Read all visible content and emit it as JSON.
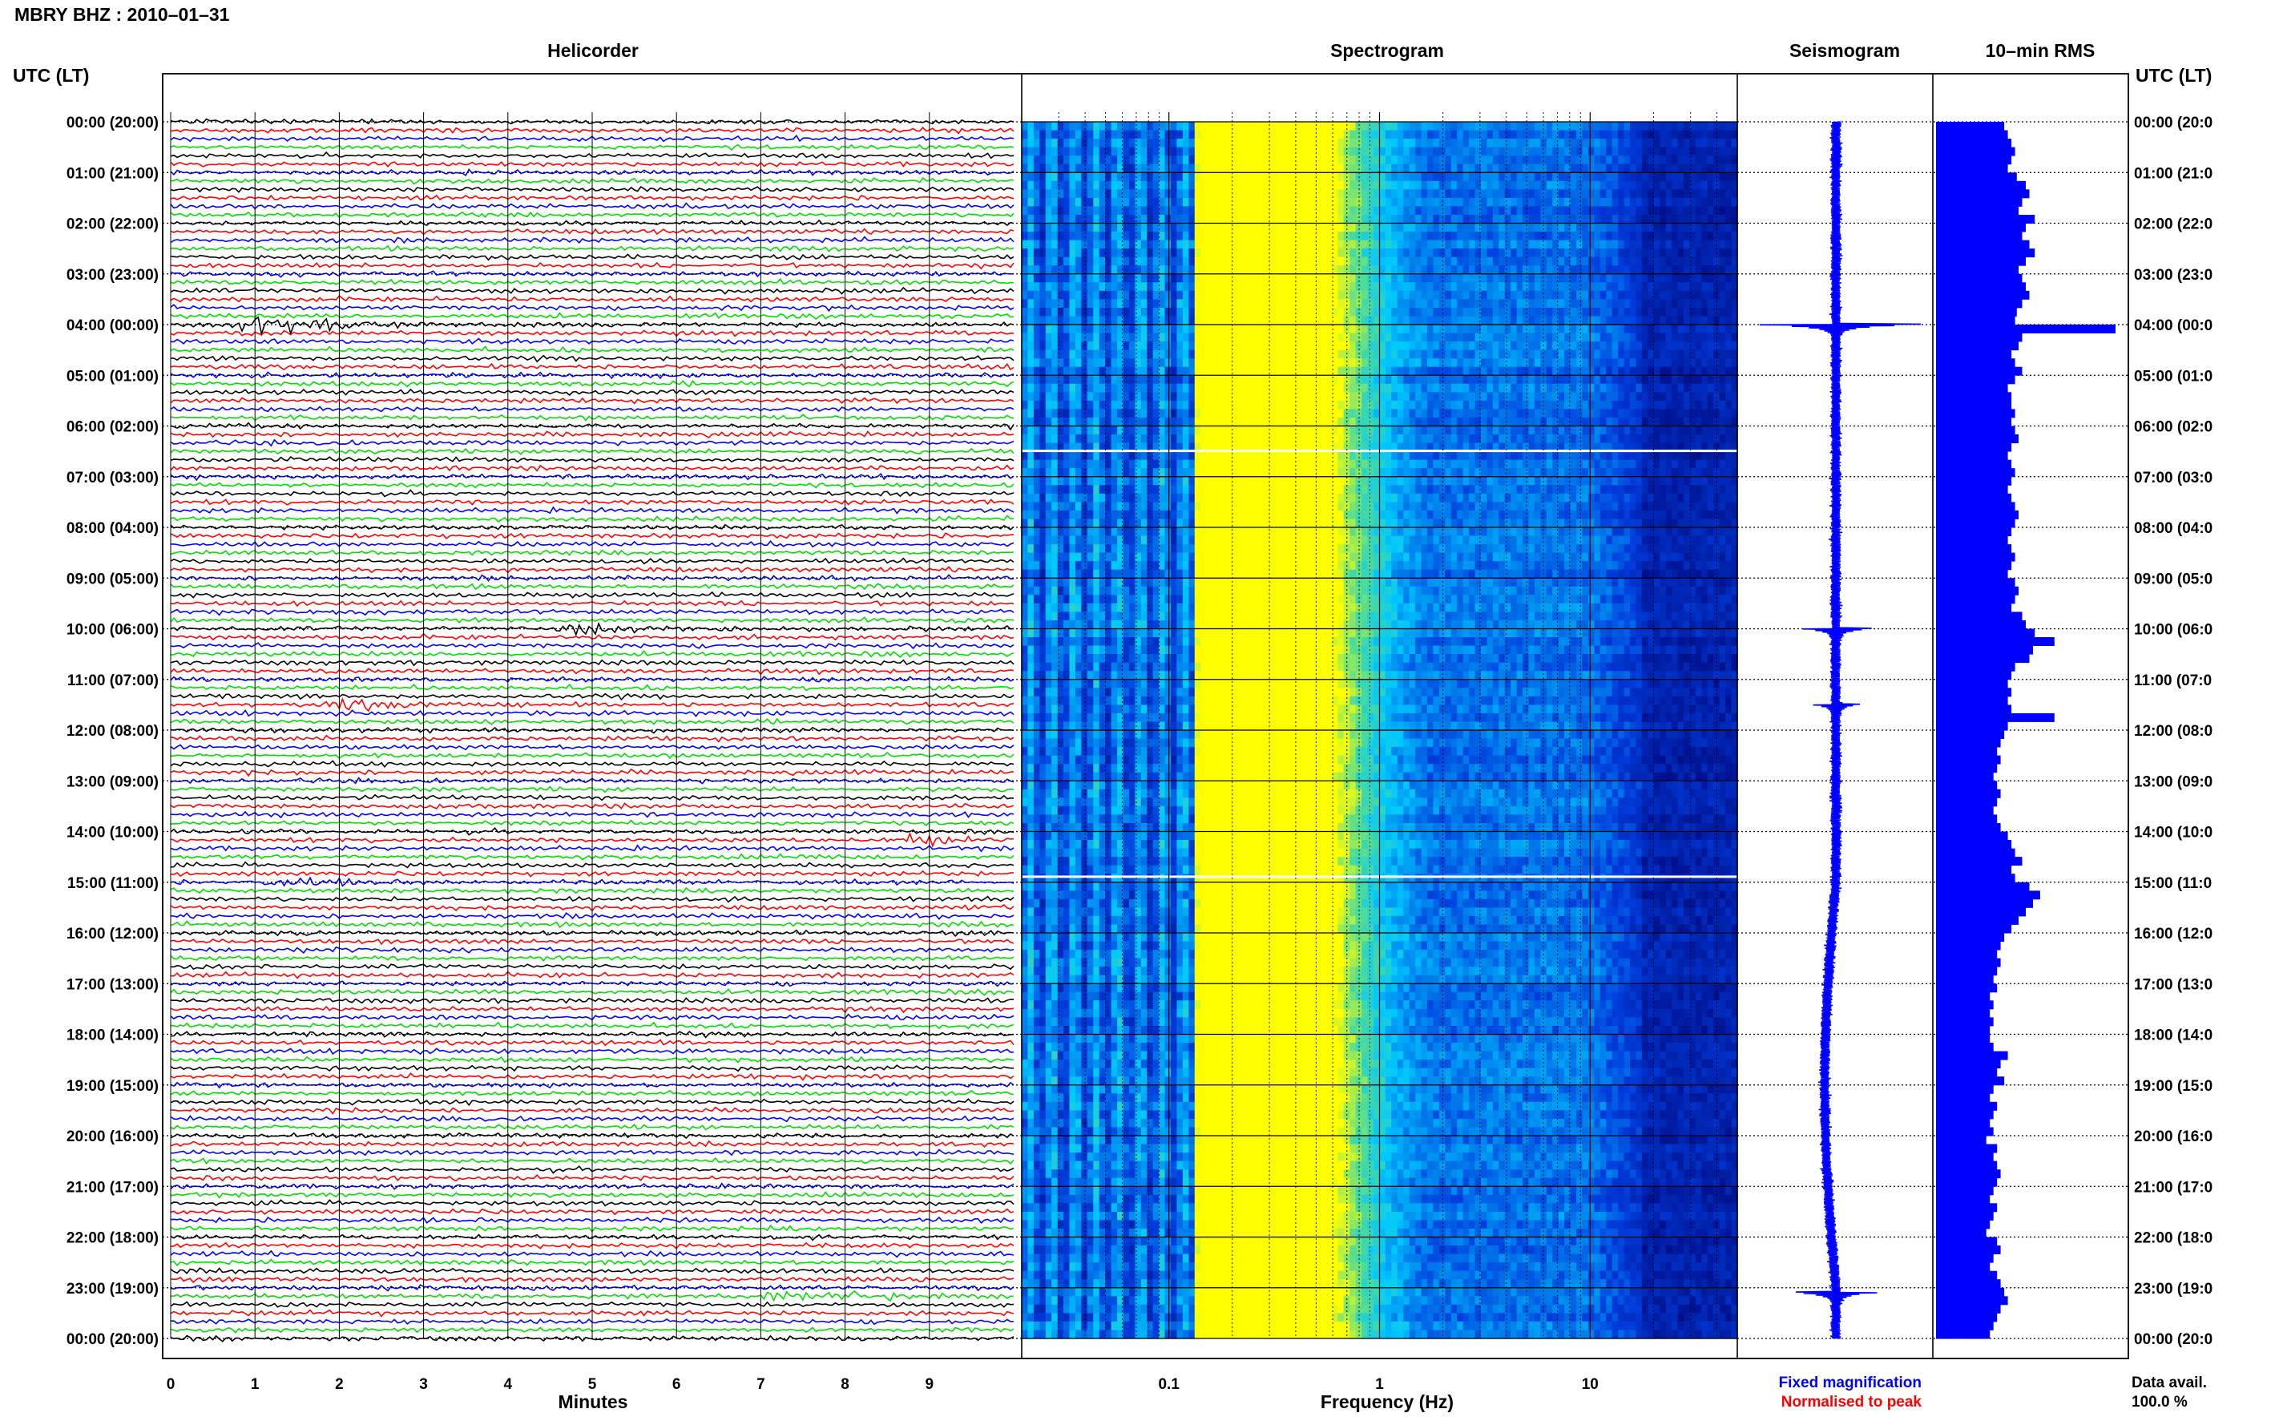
{
  "header": {
    "station_title": "MBRY BHZ : 2010–01–31",
    "utc_label_left": "UTC (LT)",
    "utc_label_right": "UTC (LT)"
  },
  "panels": {
    "helicorder": "Helicorder",
    "spectrogram": "Spectrogram",
    "seismogram": "Seismogram",
    "rms": "10–min RMS"
  },
  "axes": {
    "minutes_label": "Minutes",
    "frequency_label": "Frequency (Hz)"
  },
  "footer": {
    "fixed_magnification": "Fixed magnification",
    "normalised_to_peak": "Normalised to peak",
    "data_avail_label": "Data avail.",
    "data_avail_value": "100.0 %"
  },
  "colors": {
    "trace_cycle": [
      "#000000",
      "#ff0000",
      "#0000ff",
      "#00dd00"
    ],
    "seismo_blue": "#0000ff",
    "rms_blue": "#0000ff",
    "fixed_mag_blue": "#0000ff",
    "normalised_red": "#ff0000",
    "spec_low": "#00008c",
    "spec_mid": "#00c8ff",
    "spec_high": "#ffff00"
  },
  "chart_data": [
    {
      "type": "line",
      "panel": "helicorder",
      "xlabel": "Minutes",
      "x_ticks": [
        0,
        1,
        2,
        3,
        4,
        5,
        6,
        7,
        8,
        9
      ],
      "xlim": [
        0,
        10
      ],
      "row_labels_left": [
        "00:00 (20:00)",
        "01:00 (21:00)",
        "02:00 (22:00)",
        "03:00 (23:00)",
        "04:00 (00:00)",
        "05:00 (01:00)",
        "06:00 (02:00)",
        "07:00 (03:00)",
        "08:00 (04:00)",
        "09:00 (05:00)",
        "10:00 (06:00)",
        "11:00 (07:00)",
        "12:00 (08:00)",
        "13:00 (09:00)",
        "14:00 (10:00)",
        "15:00 (11:00)",
        "16:00 (12:00)",
        "17:00 (13:00)",
        "18:00 (14:00)",
        "19:00 (15:00)",
        "20:00 (16:00)",
        "21:00 (17:00)",
        "22:00 (18:00)",
        "23:00 (19:00)",
        "00:00 (20:00)"
      ],
      "row_labels_right": [
        "00:00 (20:0",
        "01:00 (21:0",
        "02:00 (22:0",
        "03:00 (23:0",
        "04:00 (00:0",
        "05:00 (01:0",
        "06:00 (02:0",
        "07:00 (03:0",
        "08:00 (04:0",
        "09:00 (05:0",
        "10:00 (06:0",
        "11:00 (07:0",
        "12:00 (08:0",
        "13:00 (09:0",
        "14:00 (10:0",
        "15:00 (11:0",
        "16:00 (12:0",
        "17:00 (13:0",
        "18:00 (14:0",
        "19:00 (15:0",
        "20:00 (16:0",
        "21:00 (17:0",
        "22:00 (18:0",
        "23:00 (19:0",
        "00:00 (20:0"
      ],
      "lines_per_hour": 6,
      "hours": 24,
      "events": [
        {
          "hour": 4.0,
          "minute": 0.9,
          "amp": 5
        },
        {
          "hour": 10.0,
          "minute": 4.6,
          "amp": 2.5
        },
        {
          "hour": 11.5,
          "minute": 2.0,
          "amp": 2
        },
        {
          "hour": 14.1,
          "minute": 8.6,
          "amp": 2
        },
        {
          "hour": 15.0,
          "minute": 1.2,
          "amp": 1.8
        },
        {
          "hour": 23.1,
          "minute": 7.0,
          "amp": 1.8
        },
        {
          "hour": 23.2,
          "minute": 8.0,
          "amp": 2
        }
      ]
    },
    {
      "type": "heatmap",
      "panel": "spectrogram",
      "xlabel": "Frequency (Hz)",
      "x_scale": "log",
      "xlim": [
        0.02,
        50
      ],
      "x_ticks": [
        0.1,
        1,
        10
      ],
      "x_tick_labels": [
        "0.1",
        "1",
        "10"
      ],
      "peak_frequency_hz": 0.3,
      "rolloff_frequency_hz": 25,
      "gaps_utc_hours": [
        6.5,
        14.9
      ]
    },
    {
      "type": "line",
      "panel": "seismogram",
      "legend": "Fixed magnification",
      "events": [
        {
          "hour": 4.0,
          "amp": 1.0
        },
        {
          "hour": 10.0,
          "amp": 0.4
        },
        {
          "hour": 11.5,
          "amp": 0.25
        },
        {
          "hour": 23.1,
          "amp": 0.45
        }
      ]
    },
    {
      "type": "bar",
      "panel": "rms",
      "orientation": "horizontal",
      "values_relative": [
        0.38,
        0.4,
        0.42,
        0.44,
        0.42,
        0.4,
        0.45,
        0.5,
        0.52,
        0.48,
        0.46,
        0.55,
        0.5,
        0.48,
        0.52,
        0.55,
        0.5,
        0.46,
        0.48,
        0.5,
        0.52,
        0.48,
        0.45,
        0.44,
        1.0,
        0.48,
        0.46,
        0.42,
        0.44,
        0.48,
        0.44,
        0.4,
        0.42,
        0.42,
        0.44,
        0.42,
        0.44,
        0.46,
        0.42,
        0.4,
        0.42,
        0.44,
        0.42,
        0.4,
        0.42,
        0.44,
        0.46,
        0.44,
        0.42,
        0.4,
        0.42,
        0.44,
        0.42,
        0.4,
        0.44,
        0.46,
        0.44,
        0.42,
        0.48,
        0.5,
        0.55,
        0.66,
        0.54,
        0.52,
        0.44,
        0.42,
        0.4,
        0.42,
        0.4,
        0.42,
        0.66,
        0.4,
        0.38,
        0.36,
        0.34,
        0.36,
        0.34,
        0.32,
        0.34,
        0.36,
        0.34,
        0.32,
        0.34,
        0.36,
        0.4,
        0.42,
        0.44,
        0.48,
        0.42,
        0.44,
        0.52,
        0.58,
        0.54,
        0.5,
        0.46,
        0.42,
        0.38,
        0.36,
        0.34,
        0.36,
        0.34,
        0.32,
        0.34,
        0.3,
        0.32,
        0.3,
        0.32,
        0.3,
        0.3,
        0.32,
        0.4,
        0.36,
        0.34,
        0.38,
        0.32,
        0.3,
        0.34,
        0.32,
        0.3,
        0.32,
        0.28,
        0.34,
        0.32,
        0.34,
        0.36,
        0.34,
        0.32,
        0.3,
        0.34,
        0.32,
        0.3,
        0.28,
        0.34,
        0.36,
        0.32,
        0.3,
        0.34,
        0.36,
        0.38,
        0.4,
        0.36,
        0.34,
        0.32,
        0.3
      ]
    }
  ]
}
